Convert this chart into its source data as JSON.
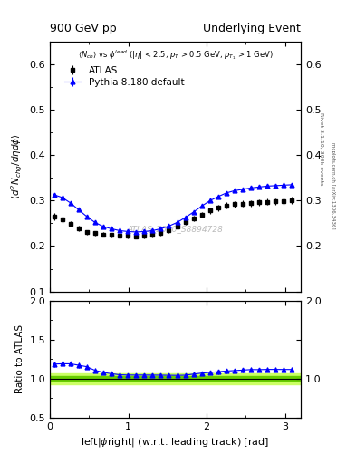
{
  "title_left": "900 GeV pp",
  "title_right": "Underlying Event",
  "subtitle": "⟨N_{ch}⟩ vs ϕ^{lead} (|η| < 2.5, p_{T} > 0.5 GeV, p_{T_1} > 1 GeV)",
  "ylabel_main": "⟨d² N_{chg}/dηdϕ⟩",
  "ylabel_ratio": "Ratio to ATLAS",
  "xlabel": "left|ϕright| (w.r.t. leading track) [rad]",
  "watermark": "ATLAS_2010_S8894728",
  "rivet_text": "Rivet 3.1.10, 300k events",
  "mcplots_text": "mcplots.cern.ch [arXiv:1306.3436]",
  "atlas_data_x": [
    0.052,
    0.157,
    0.262,
    0.366,
    0.471,
    0.576,
    0.681,
    0.785,
    0.89,
    0.995,
    1.1,
    1.204,
    1.309,
    1.414,
    1.518,
    1.623,
    1.728,
    1.833,
    1.937,
    2.042,
    2.147,
    2.251,
    2.356,
    2.461,
    2.566,
    2.67,
    2.775,
    2.88,
    2.984,
    3.089
  ],
  "atlas_data_y": [
    0.264,
    0.258,
    0.248,
    0.239,
    0.23,
    0.228,
    0.225,
    0.224,
    0.223,
    0.222,
    0.221,
    0.222,
    0.224,
    0.228,
    0.234,
    0.242,
    0.252,
    0.26,
    0.269,
    0.278,
    0.284,
    0.289,
    0.292,
    0.293,
    0.294,
    0.296,
    0.297,
    0.298,
    0.299,
    0.3
  ],
  "atlas_data_yerr": [
    0.008,
    0.007,
    0.006,
    0.006,
    0.005,
    0.005,
    0.005,
    0.005,
    0.005,
    0.005,
    0.005,
    0.005,
    0.005,
    0.005,
    0.005,
    0.005,
    0.006,
    0.006,
    0.006,
    0.007,
    0.007,
    0.007,
    0.007,
    0.007,
    0.007,
    0.007,
    0.007,
    0.007,
    0.008,
    0.008
  ],
  "pythia_x": [
    0.052,
    0.157,
    0.262,
    0.366,
    0.471,
    0.576,
    0.681,
    0.785,
    0.89,
    0.995,
    1.1,
    1.204,
    1.309,
    1.414,
    1.518,
    1.623,
    1.728,
    1.833,
    1.937,
    2.042,
    2.147,
    2.251,
    2.356,
    2.461,
    2.566,
    2.67,
    2.775,
    2.88,
    2.984,
    3.089
  ],
  "pythia_y": [
    0.313,
    0.307,
    0.295,
    0.28,
    0.265,
    0.252,
    0.243,
    0.238,
    0.234,
    0.232,
    0.231,
    0.232,
    0.234,
    0.238,
    0.244,
    0.252,
    0.263,
    0.275,
    0.288,
    0.3,
    0.309,
    0.317,
    0.322,
    0.325,
    0.328,
    0.33,
    0.332,
    0.333,
    0.334,
    0.335
  ],
  "pythia_yerr": [
    0.003,
    0.003,
    0.003,
    0.002,
    0.002,
    0.002,
    0.002,
    0.002,
    0.002,
    0.002,
    0.002,
    0.002,
    0.002,
    0.002,
    0.002,
    0.002,
    0.002,
    0.002,
    0.002,
    0.002,
    0.002,
    0.002,
    0.002,
    0.002,
    0.002,
    0.002,
    0.002,
    0.002,
    0.002,
    0.002
  ],
  "ylim_main": [
    0.1,
    0.65
  ],
  "ylim_ratio": [
    0.5,
    2.0
  ],
  "xlim": [
    0.0,
    3.2
  ],
  "atlas_color": "#000000",
  "pythia_color": "#0000ff",
  "ratio_band_outer_color": "#ccff66",
  "ratio_band_inner_color": "#66cc00",
  "legend_atlas": "ATLAS",
  "legend_pythia": "Pythia 8.180 default",
  "yticks_main": [
    0.1,
    0.2,
    0.3,
    0.4,
    0.5,
    0.6
  ],
  "yticks_ratio": [
    0.5,
    1.0,
    1.5,
    2.0
  ],
  "xticks": [
    0,
    1,
    2,
    3
  ]
}
